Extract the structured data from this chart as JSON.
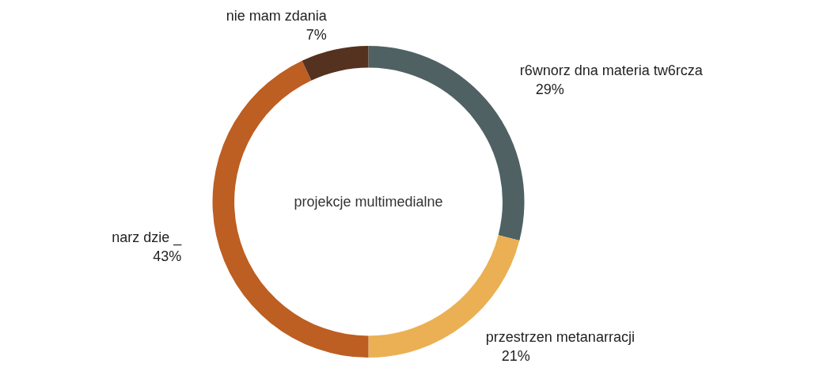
{
  "chart_data": {
    "type": "donut",
    "categories": [
      "r6wnorz dna materia tw6rcza",
      "przestrzen metanarracji",
      "narz dzie _",
      "nie mam zdania"
    ],
    "values": [
      29,
      21,
      43,
      7
    ],
    "colors": [
      "#4f6163",
      "#ebb053",
      "#bd5e22",
      "#55321f"
    ],
    "value_labels": [
      "29%",
      "21%",
      "43%",
      "7%"
    ],
    "annotations": [
      "projekcje multimedialne"
    ],
    "legend": false
  }
}
